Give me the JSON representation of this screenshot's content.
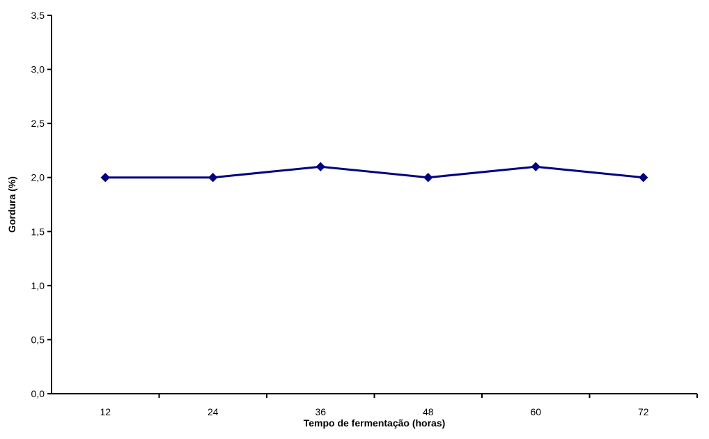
{
  "chart_data": {
    "type": "line",
    "title": "",
    "xlabel": "Tempo de fermentação (horas)",
    "ylabel": "Gordura (%)",
    "categories": [
      "12",
      "24",
      "36",
      "48",
      "60",
      "72"
    ],
    "series": [
      {
        "values": [
          2.0,
          2.0,
          2.1,
          2.0,
          2.1,
          2.0
        ],
        "color": "#000080",
        "marker": "diamond"
      }
    ],
    "ylim": [
      0,
      3.5
    ],
    "ytick_labels": [
      "0,0",
      "0,5",
      "1,0",
      "1,5",
      "2,0",
      "2,5",
      "3,0",
      "3,5"
    ],
    "grid": false,
    "legend": "none"
  }
}
